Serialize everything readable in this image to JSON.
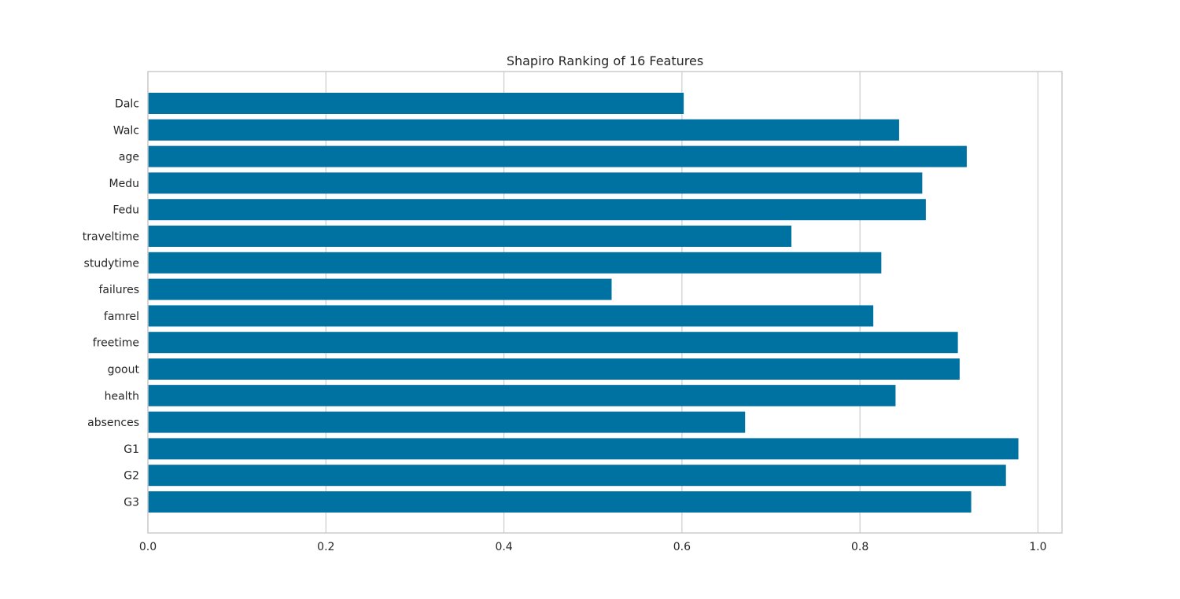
{
  "chart_data": {
    "type": "bar",
    "orientation": "horizontal",
    "title": "Shapiro Ranking of 16 Features",
    "xlabel": "",
    "ylabel": "",
    "xlim": [
      0.0,
      1.027
    ],
    "x_ticks": [
      0.0,
      0.2,
      0.4,
      0.6,
      0.8,
      1.0
    ],
    "x_tick_labels": [
      "0.0",
      "0.2",
      "0.4",
      "0.6",
      "0.8",
      "1.0"
    ],
    "grid": true,
    "bar_color": "#0072a2",
    "categories": [
      "Dalc",
      "Walc",
      "age",
      "Medu",
      "Fedu",
      "traveltime",
      "studytime",
      "failures",
      "famrel",
      "freetime",
      "goout",
      "health",
      "absences",
      "G1",
      "G2",
      "G3"
    ],
    "values": [
      0.602,
      0.844,
      0.92,
      0.87,
      0.874,
      0.723,
      0.824,
      0.521,
      0.815,
      0.91,
      0.912,
      0.84,
      0.671,
      0.978,
      0.964,
      0.925
    ]
  }
}
